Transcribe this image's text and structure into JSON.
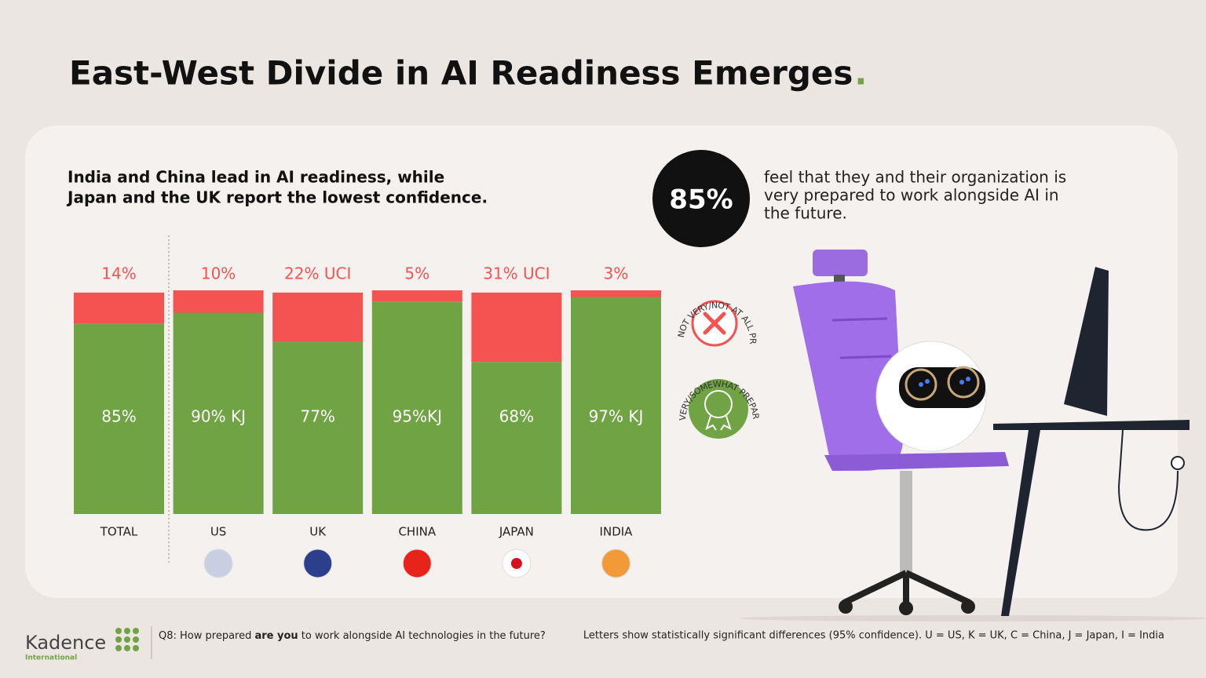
{
  "chart_data": {
    "type": "stacked_bar",
    "title": "East-West Divide in AI Readiness Emerges",
    "title_mark": ".",
    "subtitle": [
      "India and China lead in AI readiness, while",
      "Japan and the UK report the lowest confidence."
    ],
    "callout": {
      "figure": "85%",
      "text": [
        "feel that they and their organization is",
        "very prepared to work alongside AI in",
        "the future."
      ]
    },
    "categories": [
      "TOTAL",
      "US",
      "UK",
      "CHINA",
      "JAPAN",
      "INDIA"
    ],
    "ylim": [
      0,
      100
    ],
    "series": [
      {
        "name": "VERY/SOMEWHAT PREPARED",
        "color": "#6fa343",
        "values": [
          85,
          90,
          77,
          95,
          68,
          97
        ],
        "value_labels": [
          "85%",
          "90% KJ",
          "77%",
          "95%KJ",
          "68%",
          "97% KJ"
        ]
      },
      {
        "name": "NOT VERY/NOT AT ALL PREPARED",
        "color": "#f55252",
        "values": [
          14,
          10,
          22,
          5,
          31,
          3
        ],
        "value_labels": [
          "14%",
          "10%",
          "22% UCI",
          "5%",
          "31% UCI",
          "3%"
        ]
      }
    ],
    "footer": {
      "brand": "Kadence",
      "brand_sub": "International",
      "question": [
        "Q8: How prepared ",
        "are you",
        " to work alongside AI technologies in the future?"
      ],
      "note": "Letters show statistically significant differences (95% confidence). U = US, K = UK, C = China, J = Japan, I = India"
    }
  }
}
